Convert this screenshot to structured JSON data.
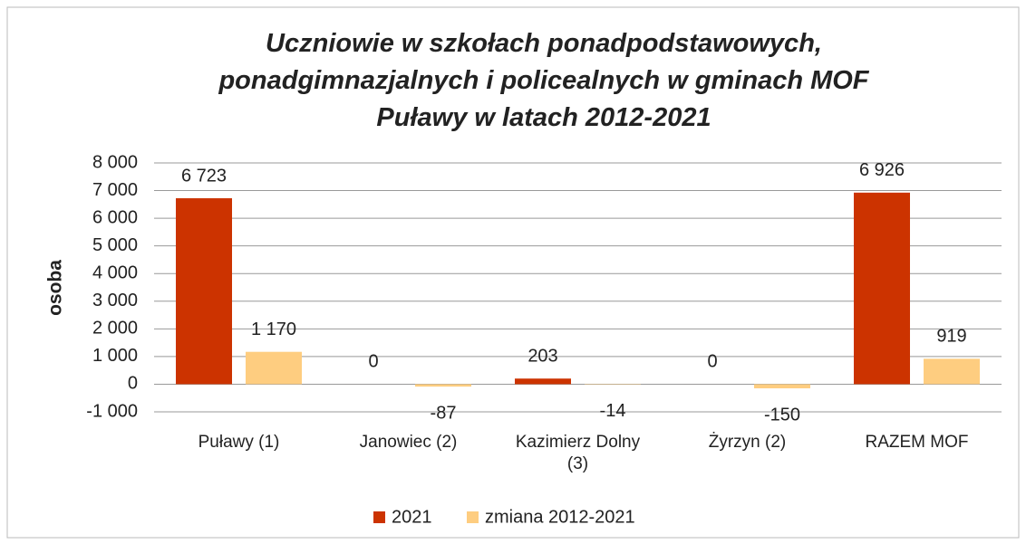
{
  "chart_data": {
    "type": "bar",
    "title": "Uczniowie w szkołach ponadpodstawowych,\nponadgimnazjalnych i policealnych w gminach MOF\nPuławy w latach 2012-2021",
    "ylabel": "osoba",
    "categories": [
      "Puławy (1)",
      "Janowiec (2)",
      "Kazimierz Dolny (3)",
      "Żyrzyn (2)",
      "RAZEM MOF"
    ],
    "series": [
      {
        "name": "2021",
        "color": "#cc3300",
        "values": [
          6723,
          0,
          203,
          0,
          6926
        ],
        "value_labels": [
          "6 723",
          "0",
          "203",
          "0",
          "6 926"
        ]
      },
      {
        "name": "zmiana 2012-2021",
        "color": "#fecd80",
        "values": [
          1170,
          -87,
          -14,
          -150,
          919
        ],
        "value_labels": [
          "1 170",
          "-87",
          "-14",
          "-150",
          "919"
        ]
      }
    ],
    "ylim": [
      -1000,
      8000
    ],
    "yticks": [
      {
        "value": -1000,
        "label": "-1 000"
      },
      0,
      {
        "value": 1000,
        "label": "1 000"
      },
      {
        "value": 2000,
        "label": "2 000"
      },
      {
        "value": 3000,
        "label": "3 000"
      },
      {
        "value": 4000,
        "label": "4 000"
      },
      {
        "value": 5000,
        "label": "5 000"
      },
      {
        "value": 6000,
        "label": "6 000"
      },
      {
        "value": 7000,
        "label": "7 000"
      },
      {
        "value": 8000,
        "label": "8 000"
      }
    ],
    "grid": true,
    "legend": "bottom"
  }
}
